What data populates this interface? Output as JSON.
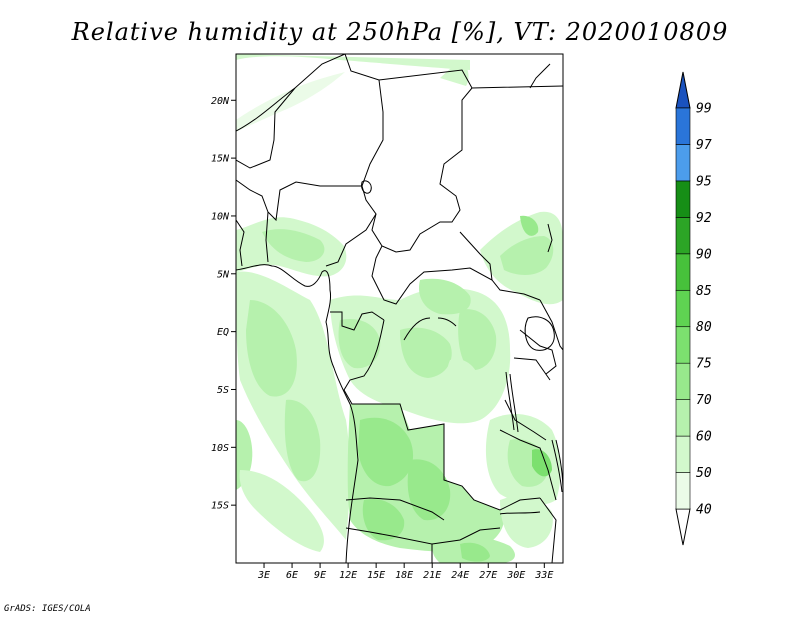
{
  "title": "Relative humidity at 250hPa [%], VT: 2020010809",
  "credit": "GrADS: IGES/COLA",
  "map": {
    "lon_range": [
      0,
      35
    ],
    "lat_range": [
      -20,
      24
    ],
    "lat_ticks": [
      {
        "value": 20,
        "label": "20N"
      },
      {
        "value": 15,
        "label": "15N"
      },
      {
        "value": 10,
        "label": "10N"
      },
      {
        "value": 5,
        "label": "5N"
      },
      {
        "value": 0,
        "label": "EQ"
      },
      {
        "value": -5,
        "label": "5S"
      },
      {
        "value": -10,
        "label": "10S"
      },
      {
        "value": -15,
        "label": "15S"
      }
    ],
    "lon_ticks": [
      {
        "value": 3,
        "label": "3E"
      },
      {
        "value": 6,
        "label": "6E"
      },
      {
        "value": 9,
        "label": "9E"
      },
      {
        "value": 12,
        "label": "12E"
      },
      {
        "value": 15,
        "label": "15E"
      },
      {
        "value": 18,
        "label": "18E"
      },
      {
        "value": 21,
        "label": "21E"
      },
      {
        "value": 24,
        "label": "24E"
      },
      {
        "value": 27,
        "label": "27E"
      },
      {
        "value": 30,
        "label": "30E"
      },
      {
        "value": 33,
        "label": "33E"
      }
    ]
  },
  "colorbar": {
    "levels": [
      {
        "label": "40",
        "color": "#ebfbe8"
      },
      {
        "label": "50",
        "color": "#d2f8cc"
      },
      {
        "label": "60",
        "color": "#b6f1ad"
      },
      {
        "label": "70",
        "color": "#98e98c"
      },
      {
        "label": "75",
        "color": "#7ce06f"
      },
      {
        "label": "80",
        "color": "#5fd352"
      },
      {
        "label": "85",
        "color": "#47c13b"
      },
      {
        "label": "90",
        "color": "#2ca526"
      },
      {
        "label": "92",
        "color": "#168e16"
      },
      {
        "label": "95",
        "color": "#4c9dec"
      },
      {
        "label": "97",
        "color": "#2a75d9"
      },
      {
        "label": "99",
        "color": "#1a52be"
      }
    ],
    "below_color": "#ffffff",
    "above_color": "#1a52be"
  }
}
